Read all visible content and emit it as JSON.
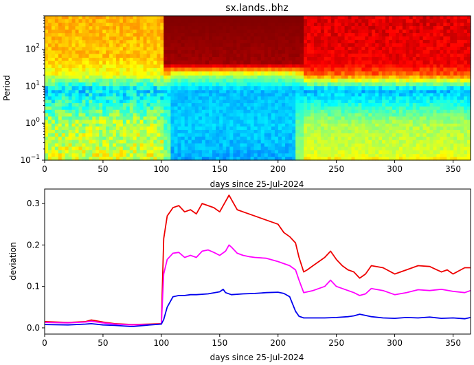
{
  "chart_data": [
    {
      "type": "heatmap",
      "title": "sx.lands..bhz",
      "xlabel": "days since 25-Jul-2024",
      "ylabel": "Period",
      "xlim": [
        0,
        365
      ],
      "ylim": [
        0.1,
        800
      ],
      "yscale": "log",
      "colormap": "jet",
      "x_ticks": [
        0,
        50,
        100,
        150,
        200,
        250,
        300,
        350
      ],
      "y_ticks": [
        {
          "value": 0.1,
          "base": "10",
          "exp": "−1"
        },
        {
          "value": 1,
          "base": "10",
          "exp": "0"
        },
        {
          "value": 10,
          "base": "10",
          "exp": "1"
        },
        {
          "value": 100,
          "base": "10",
          "exp": "2"
        }
      ],
      "bands": [
        {
          "x": [
            0,
            102
          ],
          "p": [
            [
              0.1,
              0.5,
              0.68
            ],
            [
              1,
              0.45,
              0.64
            ],
            [
              8,
              0.25,
              0.42
            ],
            [
              20,
              0.55,
              0.66
            ],
            [
              60,
              0.64,
              0.72
            ],
            [
              800,
              0.66,
              0.74
            ]
          ]
        },
        {
          "x": [
            102,
            108
          ],
          "p": [
            [
              0.1,
              0.45,
              0.55
            ],
            [
              1,
              0.4,
              0.5
            ],
            [
              8,
              0.3,
              0.38
            ],
            [
              20,
              0.6,
              0.68
            ],
            [
              40,
              0.95,
              0.98
            ],
            [
              800,
              1.0,
              1.0
            ]
          ]
        },
        {
          "x": [
            108,
            215
          ],
          "p": [
            [
              0.1,
              0.25,
              0.34
            ],
            [
              1,
              0.3,
              0.36
            ],
            [
              8,
              0.28,
              0.34
            ],
            [
              20,
              0.5,
              0.58
            ],
            [
              40,
              0.95,
              0.98
            ],
            [
              800,
              1.0,
              1.0
            ]
          ]
        },
        {
          "x": [
            215,
            222
          ],
          "p": [
            [
              0.1,
              0.5,
              0.55
            ],
            [
              1,
              0.45,
              0.5
            ],
            [
              8,
              0.28,
              0.34
            ],
            [
              20,
              0.55,
              0.62
            ],
            [
              40,
              0.95,
              0.98
            ],
            [
              800,
              1.0,
              1.0
            ]
          ]
        },
        {
          "x": [
            222,
            365
          ],
          "p": [
            [
              0.1,
              0.6,
              0.68
            ],
            [
              0.15,
              0.55,
              0.62
            ],
            [
              1,
              0.5,
              0.58
            ],
            [
              8,
              0.25,
              0.35
            ],
            [
              20,
              0.72,
              0.82
            ],
            [
              40,
              0.86,
              0.92
            ],
            [
              800,
              0.86,
              0.95
            ]
          ]
        }
      ]
    },
    {
      "type": "line",
      "xlabel": "days since 25-Jul-2024",
      "ylabel": "deviation",
      "xlim": [
        0,
        365
      ],
      "ylim": [
        -0.015,
        0.335
      ],
      "x_ticks": [
        0,
        50,
        100,
        150,
        200,
        250,
        300,
        350
      ],
      "y_ticks": [
        0.0,
        0.1,
        0.2,
        0.3
      ],
      "y_tick_labels": [
        "0.0",
        "0.1",
        "0.2",
        "0.3"
      ],
      "series": [
        {
          "color": "#ee0000",
          "x": [
            0,
            20,
            35,
            40,
            50,
            60,
            75,
            90,
            100,
            102,
            105,
            110,
            115,
            120,
            125,
            130,
            135,
            140,
            145,
            150,
            155,
            158,
            160,
            165,
            170,
            175,
            180,
            185,
            190,
            195,
            200,
            205,
            210,
            215,
            218,
            222,
            225,
            230,
            235,
            240,
            245,
            250,
            255,
            260,
            265,
            270,
            275,
            280,
            290,
            300,
            310,
            320,
            330,
            340,
            345,
            350,
            360,
            365
          ],
          "y": [
            0.015,
            0.013,
            0.015,
            0.019,
            0.014,
            0.01,
            0.008,
            0.009,
            0.01,
            0.215,
            0.27,
            0.29,
            0.295,
            0.28,
            0.285,
            0.275,
            0.3,
            0.295,
            0.29,
            0.28,
            0.305,
            0.32,
            0.31,
            0.285,
            0.28,
            0.275,
            0.27,
            0.265,
            0.26,
            0.255,
            0.25,
            0.23,
            0.22,
            0.205,
            0.17,
            0.135,
            0.14,
            0.15,
            0.16,
            0.17,
            0.185,
            0.165,
            0.15,
            0.14,
            0.135,
            0.12,
            0.13,
            0.15,
            0.145,
            0.13,
            0.14,
            0.15,
            0.148,
            0.135,
            0.14,
            0.13,
            0.145,
            0.145
          ]
        },
        {
          "color": "#ff00ff",
          "x": [
            0,
            20,
            35,
            40,
            50,
            60,
            75,
            90,
            100,
            102,
            105,
            110,
            115,
            120,
            125,
            130,
            135,
            140,
            145,
            150,
            155,
            158,
            160,
            165,
            170,
            175,
            180,
            190,
            200,
            205,
            210,
            215,
            218,
            222,
            230,
            240,
            245,
            250,
            255,
            260,
            265,
            270,
            275,
            280,
            290,
            300,
            310,
            320,
            330,
            340,
            350,
            360,
            365
          ],
          "y": [
            0.013,
            0.012,
            0.014,
            0.016,
            0.012,
            0.009,
            0.007,
            0.008,
            0.009,
            0.13,
            0.165,
            0.18,
            0.182,
            0.17,
            0.175,
            0.17,
            0.185,
            0.188,
            0.182,
            0.175,
            0.185,
            0.2,
            0.195,
            0.18,
            0.175,
            0.172,
            0.17,
            0.168,
            0.16,
            0.155,
            0.15,
            0.14,
            0.115,
            0.085,
            0.09,
            0.1,
            0.115,
            0.1,
            0.095,
            0.09,
            0.085,
            0.078,
            0.082,
            0.095,
            0.09,
            0.08,
            0.085,
            0.092,
            0.09,
            0.093,
            0.088,
            0.085,
            0.09
          ]
        },
        {
          "color": "#0000ee",
          "x": [
            0,
            20,
            35,
            40,
            50,
            60,
            75,
            90,
            95,
            100,
            102,
            105,
            110,
            115,
            120,
            125,
            130,
            140,
            150,
            153,
            155,
            160,
            170,
            180,
            190,
            200,
            205,
            210,
            215,
            218,
            222,
            230,
            240,
            250,
            260,
            265,
            270,
            275,
            280,
            290,
            300,
            310,
            320,
            330,
            340,
            350,
            360,
            365
          ],
          "y": [
            0.008,
            0.007,
            0.009,
            0.01,
            0.007,
            0.006,
            0.003,
            0.007,
            0.008,
            0.009,
            0.02,
            0.05,
            0.075,
            0.078,
            0.078,
            0.08,
            0.08,
            0.082,
            0.087,
            0.093,
            0.085,
            0.08,
            0.082,
            0.083,
            0.085,
            0.086,
            0.083,
            0.075,
            0.04,
            0.028,
            0.024,
            0.024,
            0.024,
            0.025,
            0.027,
            0.029,
            0.033,
            0.03,
            0.027,
            0.024,
            0.023,
            0.025,
            0.024,
            0.026,
            0.023,
            0.024,
            0.022,
            0.025
          ]
        }
      ]
    }
  ]
}
